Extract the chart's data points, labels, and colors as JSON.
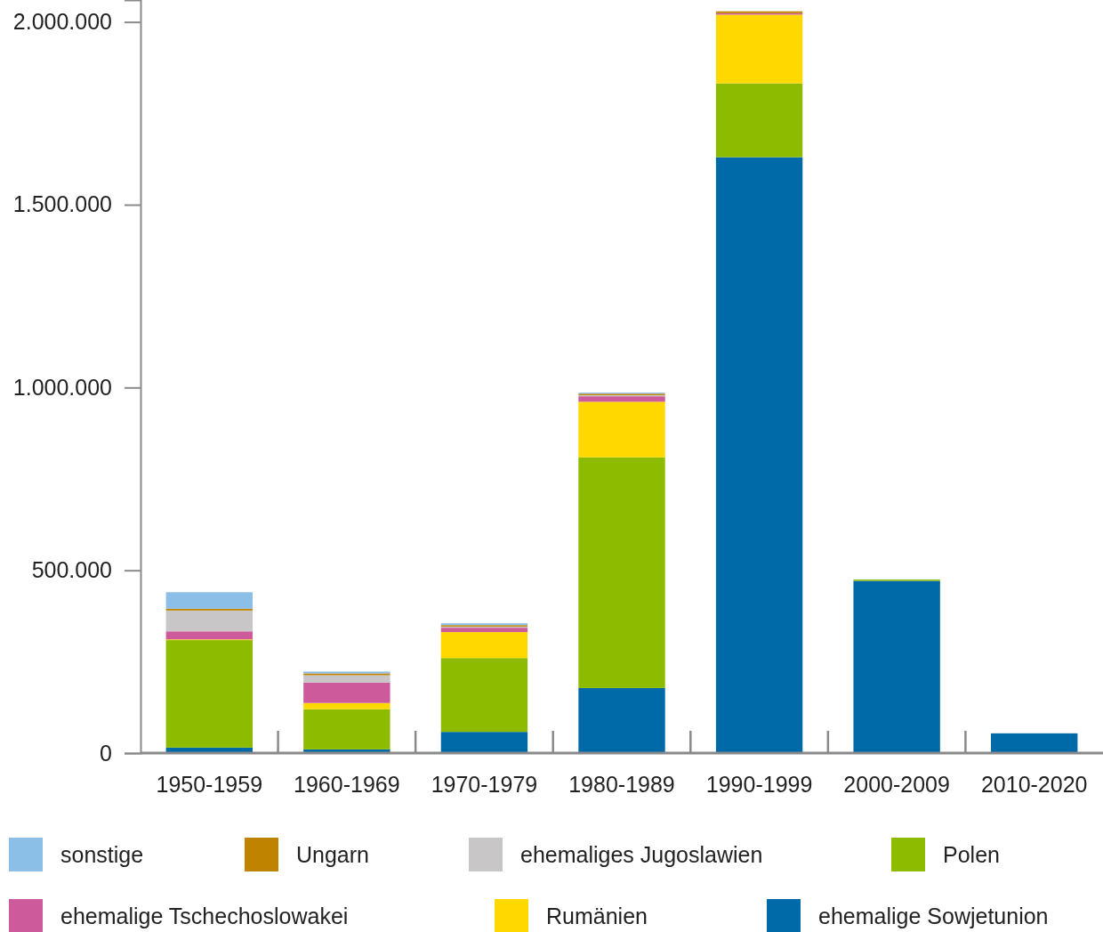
{
  "chart_data": {
    "type": "bar",
    "stacked": true,
    "categories": [
      "1950-1959",
      "1960-1969",
      "1970-1979",
      "1980-1989",
      "1990-1999",
      "2000-2009",
      "2010-2020"
    ],
    "ylim": [
      0,
      2060000
    ],
    "yticks": [
      {
        "value": 0,
        "label": "0"
      },
      {
        "value": 500000,
        "label": "500.000"
      },
      {
        "value": 1000000,
        "label": "1.000.000"
      },
      {
        "value": 1500000,
        "label": "1.500.000"
      },
      {
        "value": 2000000,
        "label": "2.000.000"
      }
    ],
    "grid": false,
    "legend": "bottom",
    "series": [
      {
        "name": "ehemalige Sowjetunion",
        "color": "#0069a8",
        "values": [
          15000,
          10000,
          58000,
          178000,
          1630000,
          471000,
          54000
        ]
      },
      {
        "name": "Polen",
        "color": "#8cbb00",
        "values": [
          294000,
          110000,
          202000,
          631000,
          202000,
          4000,
          0
        ]
      },
      {
        "name": "Rumänien",
        "color": "#ffd800",
        "values": [
          2000,
          17000,
          71000,
          152000,
          188000,
          0,
          0
        ]
      },
      {
        "name": "ehemalige Tschechoslowakei",
        "color": "#cd5a9b",
        "values": [
          22000,
          56000,
          12000,
          15000,
          4000,
          0,
          0
        ]
      },
      {
        "name": "ehemaliges Jugoslawien",
        "color": "#c8c6c7",
        "values": [
          57000,
          20000,
          3000,
          3000,
          null,
          0,
          0
        ]
      },
      {
        "name": "Ungarn",
        "color": "#bf8300",
        "values": [
          5000,
          5000,
          4000,
          4000,
          5000,
          0,
          0
        ]
      },
      {
        "name": "sonstige",
        "color": "#8bbfe8",
        "values": [
          45000,
          5000,
          5000,
          3000,
          0,
          0,
          0
        ]
      }
    ]
  }
}
